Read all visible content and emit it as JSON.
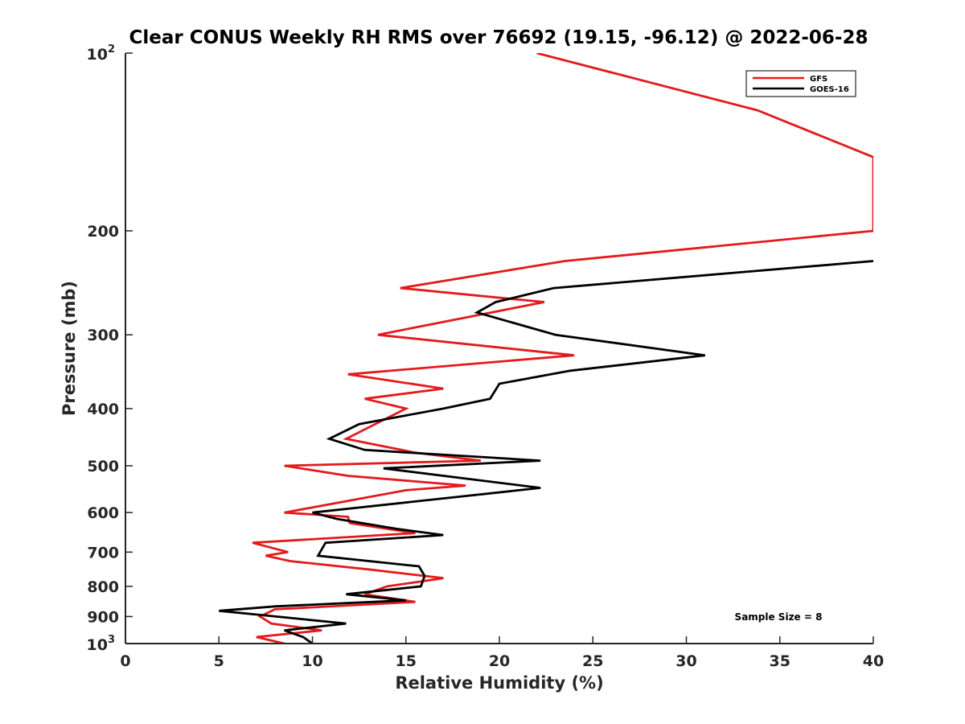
{
  "chart_data": {
    "type": "line",
    "title": "Clear CONUS Weekly RH RMS over 76692 (19.15, -96.12) @ 2022-06-28",
    "xlabel": "Relative Humidity (%)",
    "ylabel": "Pressure (mb)",
    "xlim": [
      0,
      40
    ],
    "ylim": [
      100,
      1000
    ],
    "yscale": "log",
    "y_reversed": true,
    "grid": false,
    "legend_position": "top-right",
    "x_ticks": [
      "0",
      "5",
      "10",
      "15",
      "20",
      "25",
      "30",
      "35",
      "40"
    ],
    "y_ticks": [
      {
        "value": 100,
        "base": "10",
        "exp": "2"
      },
      {
        "value": 200,
        "label": "200"
      },
      {
        "value": 300,
        "label": "300"
      },
      {
        "value": 400,
        "label": "400"
      },
      {
        "value": 500,
        "label": "500"
      },
      {
        "value": 600,
        "label": "600"
      },
      {
        "value": 700,
        "label": "700"
      },
      {
        "value": 800,
        "label": "800"
      },
      {
        "value": 900,
        "label": "900"
      },
      {
        "value": 1000,
        "base": "10",
        "exp": "3"
      }
    ],
    "annotation": "Sample Size = 8",
    "series": [
      {
        "name": "GFS",
        "color": "#e41a1c",
        "points": [
          {
            "x": 22.0,
            "p": 100
          },
          {
            "x": 33.8,
            "p": 125
          },
          {
            "x": 40.0,
            "p": 150
          },
          {
            "x": 40.0,
            "p": 200
          },
          {
            "x": 23.5,
            "p": 225
          },
          {
            "x": 14.7,
            "p": 250
          },
          {
            "x": 22.4,
            "p": 264
          },
          {
            "x": 13.5,
            "p": 300
          },
          {
            "x": 24.0,
            "p": 325
          },
          {
            "x": 11.9,
            "p": 350
          },
          {
            "x": 17.0,
            "p": 370
          },
          {
            "x": 12.8,
            "p": 385
          },
          {
            "x": 15.0,
            "p": 400
          },
          {
            "x": 11.8,
            "p": 450
          },
          {
            "x": 15.5,
            "p": 475
          },
          {
            "x": 19.0,
            "p": 490
          },
          {
            "x": 8.5,
            "p": 500
          },
          {
            "x": 11.9,
            "p": 520
          },
          {
            "x": 18.2,
            "p": 540
          },
          {
            "x": 15.0,
            "p": 550
          },
          {
            "x": 8.5,
            "p": 600
          },
          {
            "x": 11.9,
            "p": 610
          },
          {
            "x": 12.0,
            "p": 625
          },
          {
            "x": 15.5,
            "p": 650
          },
          {
            "x": 6.8,
            "p": 675
          },
          {
            "x": 8.7,
            "p": 700
          },
          {
            "x": 7.5,
            "p": 710
          },
          {
            "x": 8.8,
            "p": 725
          },
          {
            "x": 13.2,
            "p": 750
          },
          {
            "x": 17.0,
            "p": 775
          },
          {
            "x": 14.0,
            "p": 800
          },
          {
            "x": 12.8,
            "p": 825
          },
          {
            "x": 15.5,
            "p": 850
          },
          {
            "x": 8.0,
            "p": 875
          },
          {
            "x": 7.2,
            "p": 900
          },
          {
            "x": 7.8,
            "p": 925
          },
          {
            "x": 10.5,
            "p": 950
          },
          {
            "x": 7.0,
            "p": 975
          },
          {
            "x": 8.5,
            "p": 1000
          }
        ]
      },
      {
        "name": "GOES-16",
        "color": "#000000",
        "points": [
          {
            "x": 40.0,
            "p": 225
          },
          {
            "x": 22.9,
            "p": 250
          },
          {
            "x": 19.8,
            "p": 264
          },
          {
            "x": 18.8,
            "p": 275
          },
          {
            "x": 23.0,
            "p": 300
          },
          {
            "x": 31.0,
            "p": 325
          },
          {
            "x": 23.8,
            "p": 345
          },
          {
            "x": 20.0,
            "p": 363
          },
          {
            "x": 19.5,
            "p": 385
          },
          {
            "x": 17.0,
            "p": 400
          },
          {
            "x": 12.5,
            "p": 425
          },
          {
            "x": 10.9,
            "p": 450
          },
          {
            "x": 12.8,
            "p": 470
          },
          {
            "x": 22.2,
            "p": 490
          },
          {
            "x": 13.8,
            "p": 505
          },
          {
            "x": 22.2,
            "p": 545
          },
          {
            "x": 10.0,
            "p": 600
          },
          {
            "x": 11.3,
            "p": 615
          },
          {
            "x": 14.6,
            "p": 640
          },
          {
            "x": 17.0,
            "p": 655
          },
          {
            "x": 10.7,
            "p": 675
          },
          {
            "x": 10.3,
            "p": 710
          },
          {
            "x": 15.7,
            "p": 740
          },
          {
            "x": 16.0,
            "p": 768
          },
          {
            "x": 15.8,
            "p": 800
          },
          {
            "x": 11.8,
            "p": 825
          },
          {
            "x": 15.0,
            "p": 845
          },
          {
            "x": 8.0,
            "p": 865
          },
          {
            "x": 5.0,
            "p": 880
          },
          {
            "x": 11.8,
            "p": 925
          },
          {
            "x": 8.5,
            "p": 950
          },
          {
            "x": 9.5,
            "p": 975
          },
          {
            "x": 10.0,
            "p": 1000
          }
        ]
      }
    ]
  }
}
